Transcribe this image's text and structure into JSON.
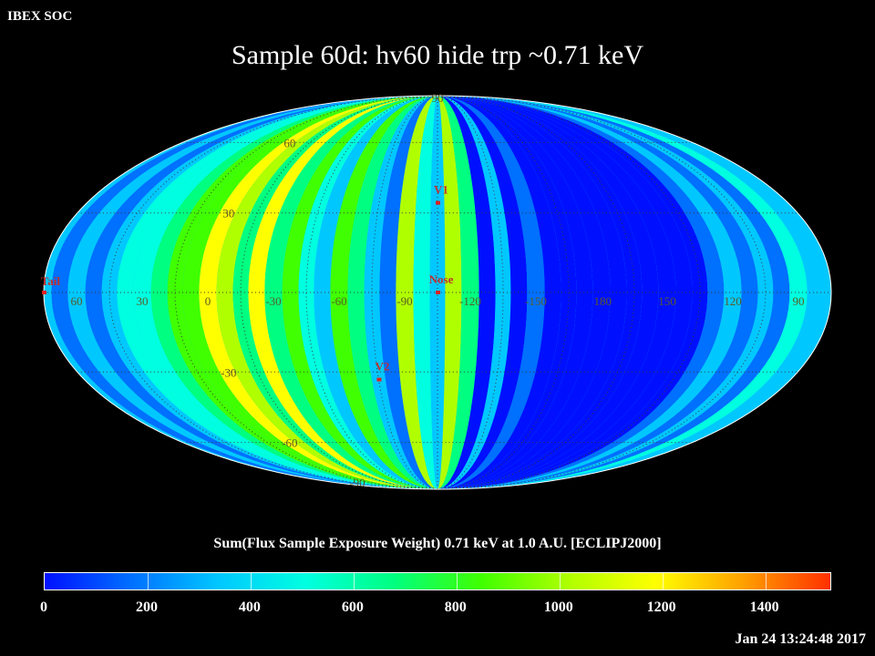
{
  "header": {
    "corner_label": "IBEX SOC",
    "title": "Sample 60d: hv60 hide trp ~0.71 keV"
  },
  "map": {
    "projection": "Mollweide (Hammer-Aitoff style all-sky)",
    "coordinate_frame": "ECLIPJ2000",
    "lat_labels": [
      {
        "text": "90",
        "lat": 90
      },
      {
        "text": "60",
        "lat": 60
      },
      {
        "text": "30",
        "lat": 30
      },
      {
        "text": "-30",
        "lat": -30
      },
      {
        "text": "-60",
        "lat": -60
      },
      {
        "text": "-90",
        "lat": -90
      }
    ],
    "lon_labels": [
      {
        "text": "60",
        "lon": 60
      },
      {
        "text": "30",
        "lon": 30
      },
      {
        "text": "0",
        "lon": 0
      },
      {
        "text": "-30",
        "lon": -30
      },
      {
        "text": "-60",
        "lon": -60
      },
      {
        "text": "-90",
        "lon": -90
      },
      {
        "text": "-120",
        "lon": -120
      },
      {
        "text": "-150",
        "lon": -150
      },
      {
        "text": "180",
        "lon": 180
      },
      {
        "text": "150",
        "lon": 150
      },
      {
        "text": "120",
        "lon": 120
      },
      {
        "text": "90",
        "lon": 90
      }
    ],
    "markers": [
      {
        "label": "V1",
        "lon": -105,
        "lat": 34
      },
      {
        "label": "Nose",
        "lon": -105,
        "lat": 0
      },
      {
        "label": "V2",
        "lon": -75,
        "lat": -33
      },
      {
        "label": "Tail",
        "lon": 75,
        "lat": 0
      }
    ]
  },
  "chart_data": {
    "type": "heatmap",
    "title": "Sample 60d: hv60 hide trp ~0.71 keV",
    "colorbar_label": "Sum(Flux Sample Exposure Weight)  0.71 keV at 1.0 A.U. [ECLIPJ2000]",
    "value_range": [
      0,
      1530
    ],
    "colorbar_ticks": [
      "0",
      "200",
      "400",
      "600",
      "800",
      "1000",
      "1200",
      "1400"
    ],
    "colorscale": [
      "#0010ff",
      "#0070ff",
      "#00c8ff",
      "#00ffe0",
      "#00ff80",
      "#40ff00",
      "#b0ff00",
      "#ffff00",
      "#ffa000",
      "#ff3000"
    ],
    "longitude_band_values": [
      {
        "lon": 75,
        "value": 420
      },
      {
        "lon": 68,
        "value": 300
      },
      {
        "lon": 60,
        "value": 420
      },
      {
        "lon": 52,
        "value": 210
      },
      {
        "lon": 45,
        "value": 380
      },
      {
        "lon": 38,
        "value": 560
      },
      {
        "lon": 30,
        "value": 470
      },
      {
        "lon": 22,
        "value": 700
      },
      {
        "lon": 15,
        "value": 900
      },
      {
        "lon": 8,
        "value": 780
      },
      {
        "lon": 0,
        "value": 1080
      },
      {
        "lon": -8,
        "value": 950
      },
      {
        "lon": -15,
        "value": 650
      },
      {
        "lon": -22,
        "value": 1200
      },
      {
        "lon": -30,
        "value": 720
      },
      {
        "lon": -38,
        "value": 870
      },
      {
        "lon": -45,
        "value": 560
      },
      {
        "lon": -52,
        "value": 430
      },
      {
        "lon": -60,
        "value": 900
      },
      {
        "lon": -68,
        "value": 760
      },
      {
        "lon": -75,
        "value": 420
      },
      {
        "lon": -82,
        "value": 180
      },
      {
        "lon": -90,
        "value": 960
      },
      {
        "lon": -98,
        "value": 520
      },
      {
        "lon": -105,
        "value": 400
      },
      {
        "lon": -112,
        "value": 980
      },
      {
        "lon": -120,
        "value": 640
      },
      {
        "lon": -128,
        "value": 130
      },
      {
        "lon": -135,
        "value": 330
      },
      {
        "lon": -142,
        "value": 80
      },
      {
        "lon": -150,
        "value": 210
      },
      {
        "lon": -158,
        "value": 90
      },
      {
        "lon": -165,
        "value": 40
      },
      {
        "lon": -172,
        "value": 20
      },
      {
        "lon": 180,
        "value": 10
      },
      {
        "lon": 172,
        "value": 40
      },
      {
        "lon": 165,
        "value": 60
      },
      {
        "lon": 158,
        "value": 25
      },
      {
        "lon": 150,
        "value": 15
      },
      {
        "lon": 142,
        "value": 40
      },
      {
        "lon": 135,
        "value": 150
      },
      {
        "lon": 128,
        "value": 230
      },
      {
        "lon": 120,
        "value": 320
      },
      {
        "lon": 112,
        "value": 180
      },
      {
        "lon": 105,
        "value": 400
      },
      {
        "lon": 98,
        "value": 260
      },
      {
        "lon": 90,
        "value": 460
      },
      {
        "lon": 82,
        "value": 340
      }
    ]
  },
  "footer": {
    "timestamp": "Jan 24 13:24:48 2017"
  }
}
